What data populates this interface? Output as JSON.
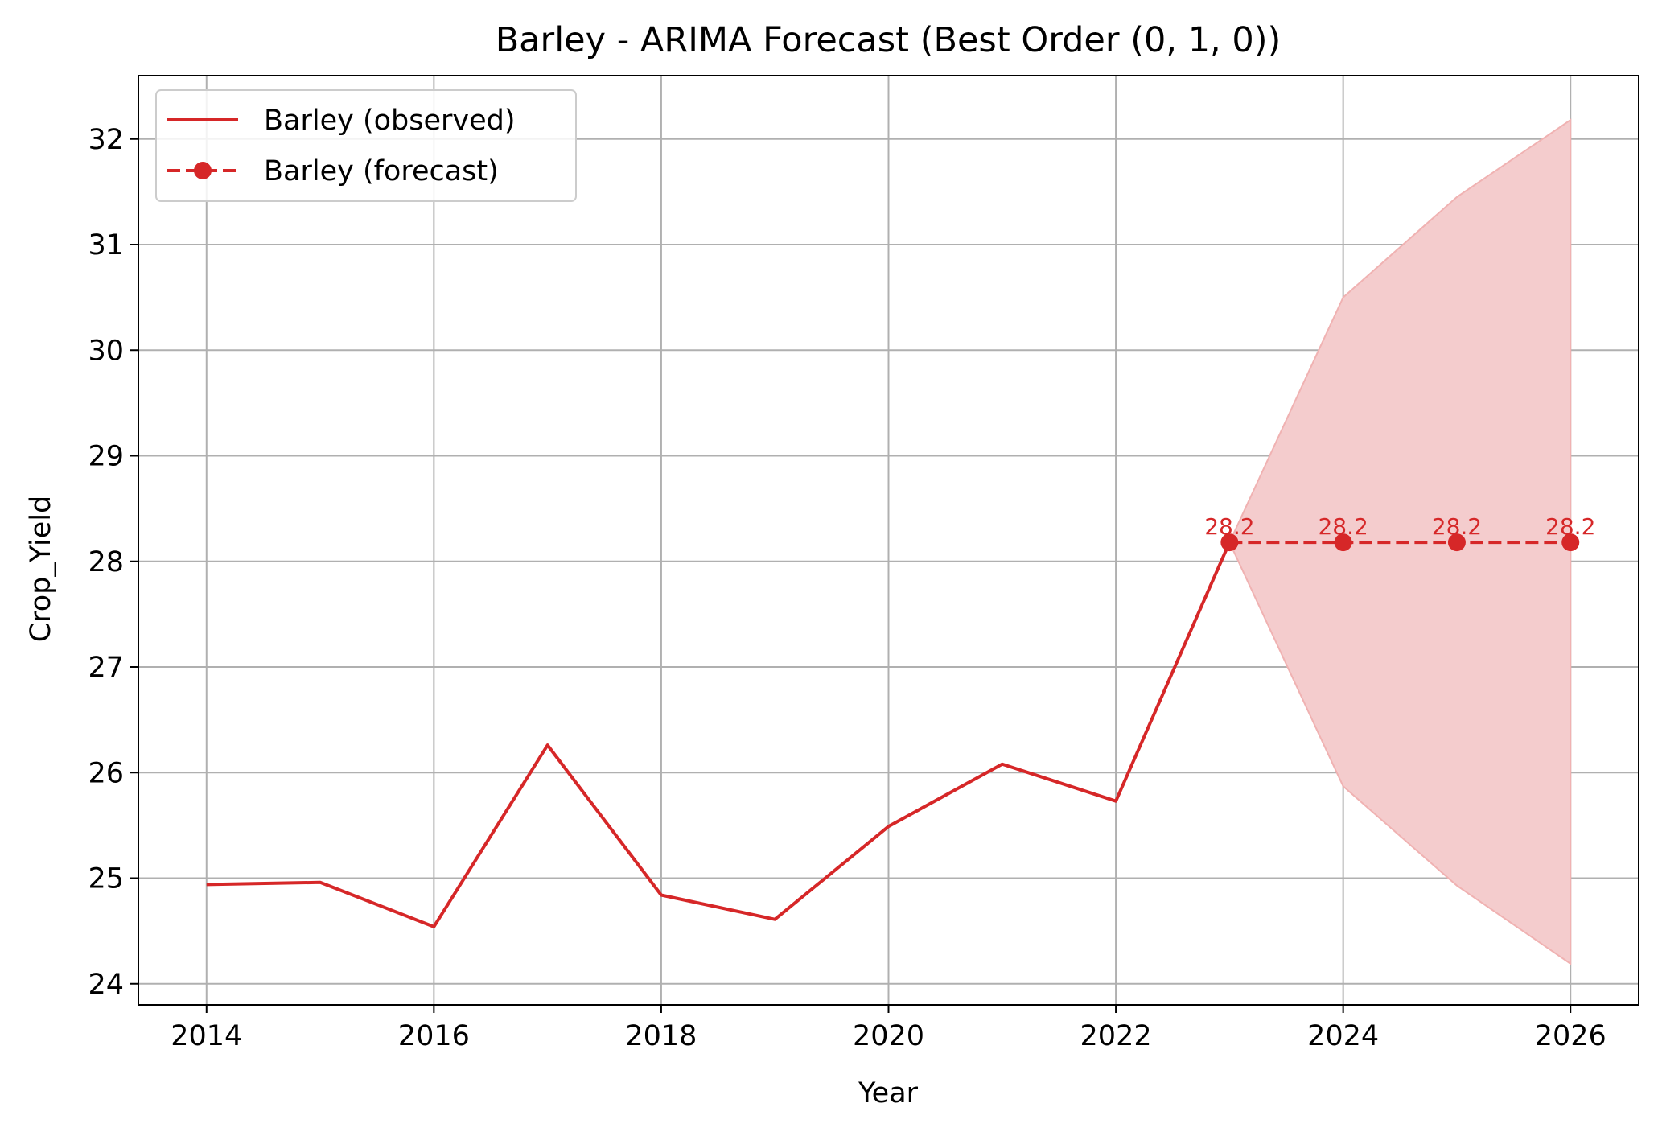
{
  "chart_data": {
    "type": "line",
    "title": "Barley - ARIMA Forecast (Best Order (0, 1, 0))",
    "xlabel": "Year",
    "ylabel": "Crop_Yield",
    "xlim": [
      2013.4,
      2026.6
    ],
    "ylim": [
      23.8,
      32.6
    ],
    "xticks": [
      2014,
      2016,
      2018,
      2020,
      2022,
      2024,
      2026
    ],
    "yticks": [
      24,
      25,
      26,
      27,
      28,
      29,
      30,
      31,
      32
    ],
    "grid": true,
    "legend_position": "upper-left",
    "colors": {
      "line": "#d62728",
      "band": "#f4cccd",
      "band_edge": "#f0b2b2",
      "grid": "#b0b0b0"
    },
    "series": [
      {
        "name": "Barley (observed)",
        "style": "solid",
        "x": [
          2014,
          2015,
          2016,
          2017,
          2018,
          2019,
          2020,
          2021,
          2022,
          2023
        ],
        "y": [
          24.94,
          24.96,
          24.54,
          26.26,
          24.84,
          24.61,
          25.49,
          26.08,
          25.73,
          28.18
        ]
      },
      {
        "name": "Barley (forecast)",
        "style": "dashed-with-markers",
        "x": [
          2023,
          2024,
          2025,
          2026
        ],
        "y": [
          28.18,
          28.18,
          28.18,
          28.18
        ],
        "labels": [
          "28.2",
          "28.2",
          "28.2",
          "28.2"
        ]
      }
    ],
    "confidence_interval": {
      "x": [
        2023,
        2024,
        2025,
        2026
      ],
      "lower": [
        28.18,
        25.87,
        24.93,
        24.19
      ],
      "upper": [
        28.18,
        30.5,
        31.45,
        32.18
      ]
    }
  }
}
